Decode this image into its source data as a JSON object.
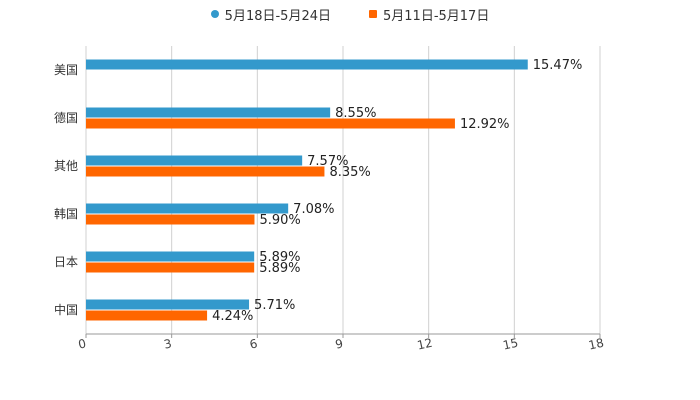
{
  "chart_data": {
    "type": "bar",
    "orientation": "horizontal",
    "categories": [
      "美国",
      "德国",
      "其他",
      "韩国",
      "日本",
      "中国"
    ],
    "series": [
      {
        "name": "5月18日-5月24日",
        "color": "#3399CC",
        "values": [
          15.47,
          8.55,
          7.57,
          7.08,
          5.89,
          5.71
        ],
        "labels": [
          "15.47%",
          "8.55%",
          "7.57%",
          "7.08%",
          "5.89%",
          "5.71%"
        ]
      },
      {
        "name": "5月11日-5月17日",
        "color": "#FF6600",
        "values": [
          null,
          12.92,
          8.35,
          5.9,
          5.89,
          4.24
        ],
        "labels": [
          null,
          "12.92%",
          "8.35%",
          "5.90%",
          "5.89%",
          "4.24%"
        ]
      }
    ],
    "xlim": [
      0,
      18
    ],
    "xticks": [
      "0",
      "3",
      "6",
      "9",
      "12",
      "15",
      "18"
    ],
    "grid": true,
    "legend_position": "top-center"
  }
}
